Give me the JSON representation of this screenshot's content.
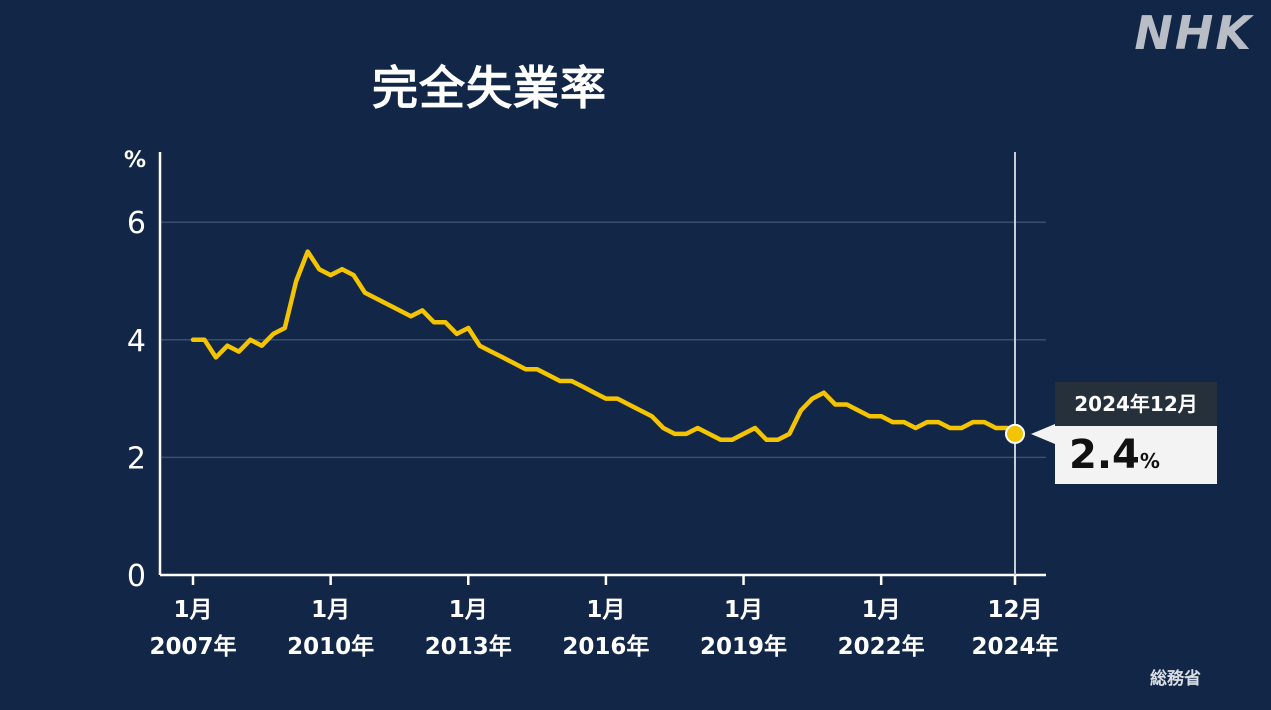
{
  "brand": {
    "logo": "NHK"
  },
  "source": "総務省",
  "callout": {
    "date": "2024年12月",
    "value": "2.4",
    "unit": "%"
  },
  "colors": {
    "background": "#122747",
    "line": "#f5c400",
    "axis": "#ffffff",
    "grid": "#3a4d6b",
    "callout_head": "#26303b",
    "callout_body": "#f3f3f3"
  },
  "chart_data": {
    "type": "line",
    "title": "完全失業率",
    "ylabel": "%",
    "ylim": [
      0,
      7
    ],
    "yticks": [
      0,
      2,
      4,
      6
    ],
    "grid": true,
    "xlim": [
      2007.0,
      2025.0
    ],
    "xticks": [
      {
        "x": 2007.0,
        "line1": "1月",
        "line2": "2007年"
      },
      {
        "x": 2010.0,
        "line1": "1月",
        "line2": "2010年"
      },
      {
        "x": 2013.0,
        "line1": "1月",
        "line2": "2013年"
      },
      {
        "x": 2016.0,
        "line1": "1月",
        "line2": "2016年"
      },
      {
        "x": 2019.0,
        "line1": "1月",
        "line2": "2019年"
      },
      {
        "x": 2022.0,
        "line1": "1月",
        "line2": "2022年"
      },
      {
        "x": 2024.917,
        "line1": "12月",
        "line2": "2024年"
      }
    ],
    "series": [
      {
        "x": [
          2007.0,
          2007.25,
          2007.5,
          2007.75,
          2008.0,
          2008.25,
          2008.5,
          2008.75,
          2009.0,
          2009.25,
          2009.5,
          2009.75,
          2010.0,
          2010.25,
          2010.5,
          2010.75,
          2011.0,
          2011.25,
          2011.5,
          2011.75,
          2012.0,
          2012.25,
          2012.5,
          2012.75,
          2013.0,
          2013.25,
          2013.5,
          2013.75,
          2014.0,
          2014.25,
          2014.5,
          2014.75,
          2015.0,
          2015.25,
          2015.5,
          2015.75,
          2016.0,
          2016.25,
          2016.5,
          2016.75,
          2017.0,
          2017.25,
          2017.5,
          2017.75,
          2018.0,
          2018.25,
          2018.5,
          2018.75,
          2019.0,
          2019.25,
          2019.5,
          2019.75,
          2020.0,
          2020.25,
          2020.5,
          2020.75,
          2021.0,
          2021.25,
          2021.5,
          2021.75,
          2022.0,
          2022.25,
          2022.5,
          2022.75,
          2023.0,
          2023.25,
          2023.5,
          2023.75,
          2024.0,
          2024.25,
          2024.5,
          2024.75,
          2024.917
        ],
        "values": [
          4.0,
          4.0,
          3.7,
          3.9,
          3.8,
          4.0,
          3.9,
          4.1,
          4.2,
          5.0,
          5.5,
          5.2,
          5.1,
          5.2,
          5.1,
          4.8,
          4.7,
          4.6,
          4.5,
          4.4,
          4.5,
          4.3,
          4.3,
          4.1,
          4.2,
          3.9,
          3.8,
          3.7,
          3.6,
          3.5,
          3.5,
          3.4,
          3.3,
          3.3,
          3.2,
          3.1,
          3.0,
          3.0,
          2.9,
          2.8,
          2.7,
          2.5,
          2.4,
          2.4,
          2.5,
          2.4,
          2.3,
          2.3,
          2.4,
          2.5,
          2.3,
          2.3,
          2.4,
          2.8,
          3.0,
          3.1,
          2.9,
          2.9,
          2.8,
          2.7,
          2.7,
          2.6,
          2.6,
          2.5,
          2.6,
          2.6,
          2.5,
          2.5,
          2.6,
          2.6,
          2.5,
          2.5,
          2.4
        ]
      }
    ]
  }
}
